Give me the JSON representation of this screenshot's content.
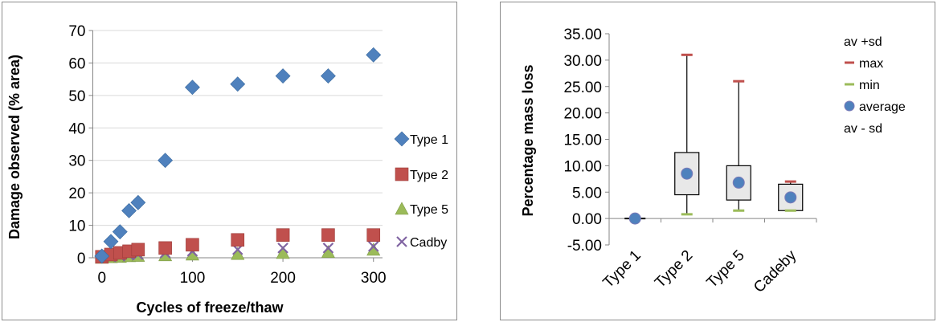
{
  "chart_data": [
    {
      "type": "scatter",
      "xlabel": "Cycles of freeze/thaw",
      "ylabel": "Damage observed (% area)",
      "xlim": [
        -10,
        310
      ],
      "ylim": [
        0,
        70
      ],
      "xticks": [
        0,
        100,
        200,
        300
      ],
      "yticks": [
        0,
        10,
        20,
        30,
        40,
        50,
        60,
        70
      ],
      "grid": "horizontal",
      "legend_position": "right",
      "series": [
        {
          "name": "Type 1",
          "color": "#4f81bd",
          "marker": "diamond",
          "x": [
            0,
            10,
            20,
            30,
            40,
            70,
            100,
            150,
            200,
            250,
            300
          ],
          "y": [
            0.5,
            5,
            8,
            14.5,
            17,
            30,
            52.5,
            53.5,
            56,
            56,
            62.5
          ]
        },
        {
          "name": "Type 2",
          "color": "#c0504d",
          "marker": "square",
          "x": [
            0,
            10,
            20,
            30,
            40,
            70,
            100,
            150,
            200,
            250,
            300
          ],
          "y": [
            0.3,
            1,
            1.5,
            2,
            2.5,
            3,
            4,
            5.5,
            7,
            7,
            7
          ]
        },
        {
          "name": "Type 5",
          "color": "#9bbb59",
          "marker": "triangle",
          "x": [
            0,
            10,
            20,
            30,
            40,
            70,
            100,
            150,
            200,
            250,
            300
          ],
          "y": [
            0,
            0.2,
            0.3,
            0.5,
            0.6,
            0.8,
            1,
            1.2,
            1.5,
            1.8,
            2.5
          ]
        },
        {
          "name": "Cadby",
          "color": "#8064a2",
          "marker": "x",
          "x": [
            0,
            10,
            20,
            30,
            40,
            70,
            100,
            150,
            200,
            250,
            300
          ],
          "y": [
            0,
            0.3,
            0.5,
            0.8,
            1,
            1.5,
            2,
            2.5,
            3,
            3,
            3.5
          ]
        }
      ]
    },
    {
      "type": "box",
      "ylabel": "Percentage mass loss",
      "ylim": [
        -5,
        35
      ],
      "yticks": [
        "35.00",
        "30.00",
        "25.00",
        "20.00",
        "15.00",
        "10.00",
        "5.00",
        "0.00",
        "-5.00"
      ],
      "ytick_values": [
        35,
        30,
        25,
        20,
        15,
        10,
        5,
        0,
        -5
      ],
      "categories": [
        "Type 1",
        "Type 2",
        "Type 5",
        "Cadeby"
      ],
      "legend_position": "right",
      "legend": [
        {
          "name": "av +sd",
          "symbol": "none",
          "color": "#000000"
        },
        {
          "name": "max",
          "symbol": "dash",
          "color": "#c0504d"
        },
        {
          "name": "min",
          "symbol": "dash",
          "color": "#9bbb59"
        },
        {
          "name": "average",
          "symbol": "circle",
          "color": "#4f81bd"
        },
        {
          "name": "av - sd",
          "symbol": "none",
          "color": "#000000"
        }
      ],
      "series": {
        "max": [
          0,
          31,
          26,
          7
        ],
        "av_plus_sd": [
          0,
          12.5,
          10,
          6.5
        ],
        "average": [
          0,
          8.5,
          6.8,
          4
        ],
        "av_minus_sd": [
          0,
          4.5,
          3.5,
          1.5
        ],
        "min": [
          0,
          0.8,
          1.5,
          1.5
        ]
      }
    }
  ]
}
